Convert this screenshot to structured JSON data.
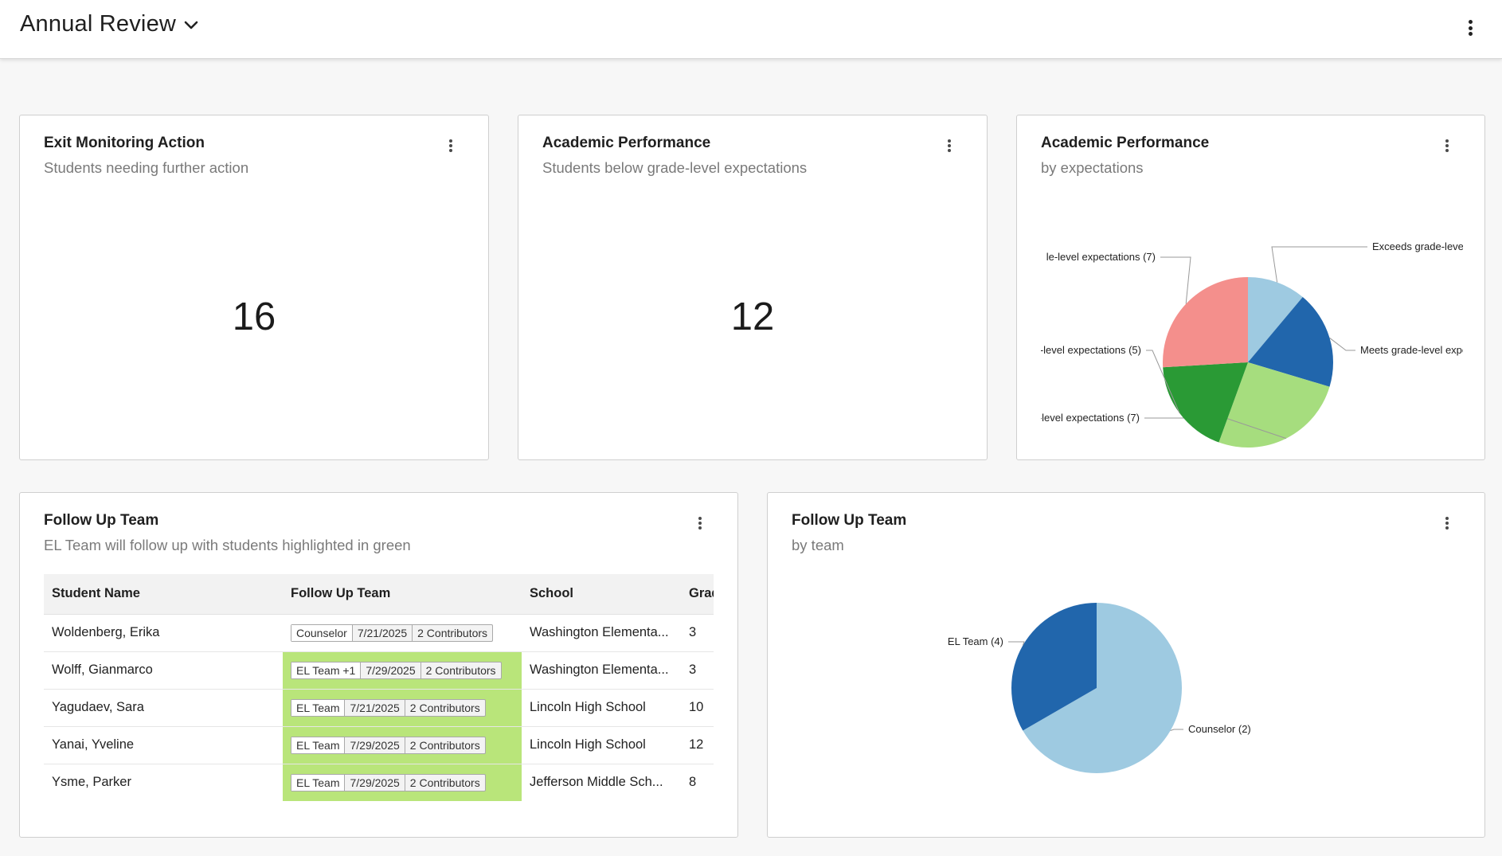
{
  "header": {
    "title": "Annual Review"
  },
  "cards": {
    "exit_monitoring": {
      "title": "Exit Monitoring Action",
      "subtitle": "Students needing further action",
      "value": "16"
    },
    "academic_count": {
      "title": "Academic Performance",
      "subtitle": "Students below grade-level expectations",
      "value": "12"
    },
    "academic_pie": {
      "title": "Academic Performance",
      "subtitle": "by expectations",
      "slice_labels": [
        "Exceeds grade-level exp",
        "Meets grade-level expe",
        "le-level expectations (7)",
        "le-level expectations (5)",
        "le-level expectations (7)"
      ]
    },
    "follow_up_table": {
      "title": "Follow Up Team",
      "subtitle": "EL Team will follow up with students highlighted in green",
      "columns": [
        "Student Name",
        "Follow Up Team",
        "School",
        "Grade"
      ],
      "rows": [
        {
          "name": "Woldenberg, Erika",
          "team": "Counselor",
          "date": "7/21/2025",
          "contributors": "2 Contributors",
          "school": "Washington Elementa...",
          "grade": "3",
          "highlight": false
        },
        {
          "name": "Wolff, Gianmarco",
          "team": "EL Team +1",
          "date": "7/29/2025",
          "contributors": "2 Contributors",
          "school": "Washington Elementa...",
          "grade": "3",
          "highlight": true
        },
        {
          "name": "Yagudaev, Sara",
          "team": "EL Team",
          "date": "7/21/2025",
          "contributors": "2 Contributors",
          "school": "Lincoln High School",
          "grade": "10",
          "highlight": true
        },
        {
          "name": "Yanai, Yveline",
          "team": "EL Team",
          "date": "7/29/2025",
          "contributors": "2 Contributors",
          "school": "Lincoln High School",
          "grade": "12",
          "highlight": true
        },
        {
          "name": "Ysme, Parker",
          "team": "EL Team",
          "date": "7/29/2025",
          "contributors": "2 Contributors",
          "school": "Jefferson Middle Sch...",
          "grade": "8",
          "highlight": true
        }
      ]
    },
    "follow_up_pie": {
      "title": "Follow Up Team",
      "subtitle": "by team",
      "slice_labels": [
        "Counselor (2)",
        "EL Team (4)"
      ]
    }
  },
  "chart_data": [
    {
      "type": "pie",
      "title": "Academic Performance",
      "subtitle": "by expectations",
      "slices": [
        {
          "label": "Exceeds grade-level exp",
          "value": 3,
          "color": "#9ecae1"
        },
        {
          "label": "Meets grade-level expe",
          "value": 5,
          "color": "#2166ac"
        },
        {
          "label": "le-level expectations (7)",
          "value": 7,
          "color": "#a6dd7e"
        },
        {
          "label": "le-level expectations (5)",
          "value": 5,
          "color": "#2a9a35"
        },
        {
          "label": "le-level expectations (7)",
          "value": 7,
          "color": "#f48f8c"
        }
      ]
    },
    {
      "type": "pie",
      "title": "Follow Up Team",
      "subtitle": "by team",
      "slices": [
        {
          "label": "EL Team (4)",
          "value": 4,
          "color": "#9ecae1"
        },
        {
          "label": "Counselor (2)",
          "value": 2,
          "color": "#2166ac"
        }
      ]
    }
  ],
  "colors": {
    "highlight": "#b9e57a",
    "pie_light_blue": "#9ecae1",
    "pie_dark_blue": "#2166ac",
    "pie_light_green": "#a6dd7e",
    "pie_green": "#2a9a35",
    "pie_pink": "#f48f8c"
  },
  "icons": {
    "title_dropdown": "chevron-down-icon",
    "menu": "kebab-menu-icon"
  }
}
